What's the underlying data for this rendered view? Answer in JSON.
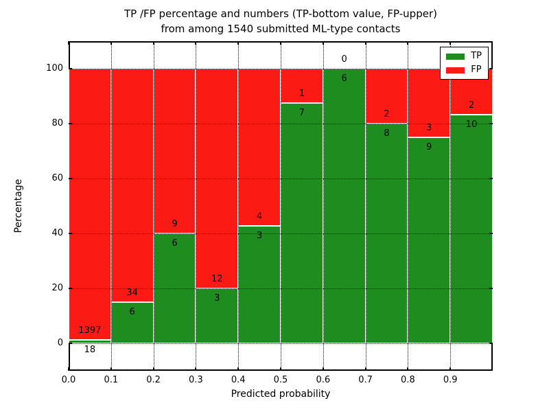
{
  "title": {
    "line1": "TP /FP percentage and numbers (TP-bottom value, FP-upper)",
    "line2": "from among 1540 submitted ML-type contacts"
  },
  "axes": {
    "xlabel": "Predicted probability",
    "ylabel": "Percentage",
    "y_tick_values": [
      0,
      20,
      40,
      60,
      80,
      100
    ],
    "y_tick_labels": [
      "0",
      "20",
      "40",
      "60",
      "80",
      "100"
    ],
    "x_tick_values": [
      0.0,
      0.1,
      0.2,
      0.3,
      0.4,
      0.5,
      0.6,
      0.7,
      0.8,
      0.9
    ],
    "x_tick_labels": [
      "0.0",
      "0.1",
      "0.2",
      "0.3",
      "0.4",
      "0.5",
      "0.6",
      "0.7",
      "0.8",
      "0.9"
    ],
    "ylim": [
      -10,
      110
    ],
    "xlim": [
      0,
      1
    ],
    "grid": true
  },
  "legend": {
    "position": "upper right",
    "items": [
      {
        "label": "TP",
        "color": "#1e8c1e"
      },
      {
        "label": "FP",
        "color": "#fc1a15"
      }
    ]
  },
  "chart_data": {
    "type": "bar",
    "stacked": true,
    "normalized": "percent of bin total",
    "title": "TP /FP percentage and numbers (TP-bottom value, FP-upper) from among 1540 submitted ML-type contacts",
    "xlabel": "Predicted probability",
    "ylabel": "Percentage",
    "total_contacts": 1540,
    "bin_width": 0.1,
    "bin_starts": [
      0.0,
      0.1,
      0.2,
      0.3,
      0.4,
      0.5,
      0.6,
      0.7,
      0.8,
      0.9
    ],
    "series": [
      {
        "name": "TP",
        "stack": "bottom",
        "color": "#1e8c1e",
        "counts": [
          18,
          6,
          6,
          3,
          3,
          7,
          6,
          8,
          9,
          10
        ],
        "percent": [
          1.272,
          15.0,
          40.0,
          20.0,
          42.857,
          87.5,
          100.0,
          80.0,
          75.0,
          83.333
        ]
      },
      {
        "name": "FP",
        "stack": "top",
        "color": "#fc1a15",
        "counts": [
          1397,
          34,
          9,
          12,
          4,
          1,
          0,
          2,
          3,
          2
        ],
        "percent": [
          98.728,
          85.0,
          60.0,
          80.0,
          57.143,
          12.5,
          0.0,
          20.0,
          25.0,
          16.667
        ]
      }
    ],
    "legend_position": "upper right",
    "grid": "dotted"
  }
}
